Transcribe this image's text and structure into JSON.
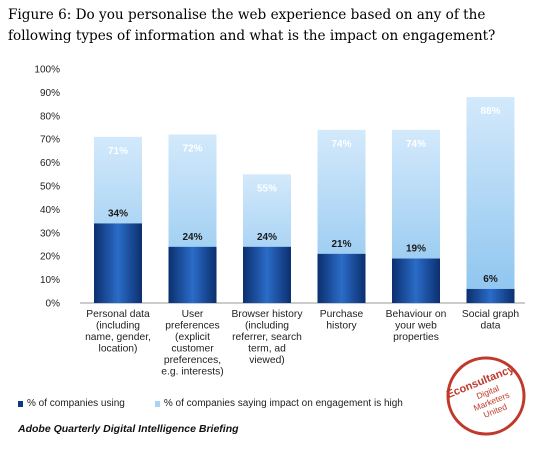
{
  "figure": {
    "title": "Figure 6: Do you personalise the web experience based on any of the following types of information and what is the impact on engagement?",
    "source": "Adobe Quarterly Digital Intelligence Briefing"
  },
  "logo": {
    "line1": "Econsultancy",
    "line2": "Digital",
    "line3": "Marketers",
    "line4": "United",
    "color": "#c0392b"
  },
  "colors": {
    "series1_dark": "#0d3a86",
    "series1_mid": "#1f5fbf",
    "series2_light": "#a9d3f3",
    "series2_top": "#cfe7fa"
  },
  "chart_data": {
    "type": "bar",
    "categories": [
      [
        "Personal data",
        "(including",
        "name, gender,",
        "location)"
      ],
      [
        "User",
        "preferences",
        "(explicit",
        "customer",
        "preferences,",
        "e.g. interests)"
      ],
      [
        "Browser history",
        "(including",
        "referrer, search",
        "term, ad",
        "viewed)"
      ],
      [
        "Purchase",
        "history"
      ],
      [
        "Behaviour on",
        "your web",
        "properties"
      ],
      [
        "Social graph",
        "data"
      ]
    ],
    "series": [
      {
        "name": "% of companies using",
        "values": [
          34,
          24,
          24,
          21,
          19,
          6
        ],
        "labels": [
          "34%",
          "24%",
          "24%",
          "21%",
          "19%",
          "6%"
        ]
      },
      {
        "name": "% of companies saying impact on engagement is high",
        "values": [
          71,
          72,
          55,
          74,
          74,
          88
        ],
        "labels": [
          "71%",
          "72%",
          "55%",
          "74%",
          "74%",
          "88%"
        ]
      }
    ],
    "yticks": [
      "0%",
      "10%",
      "20%",
      "30%",
      "40%",
      "50%",
      "60%",
      "70%",
      "80%",
      "90%",
      "100%"
    ],
    "ylim": [
      0,
      100
    ],
    "grid": false,
    "legend_position": "bottom-left"
  }
}
